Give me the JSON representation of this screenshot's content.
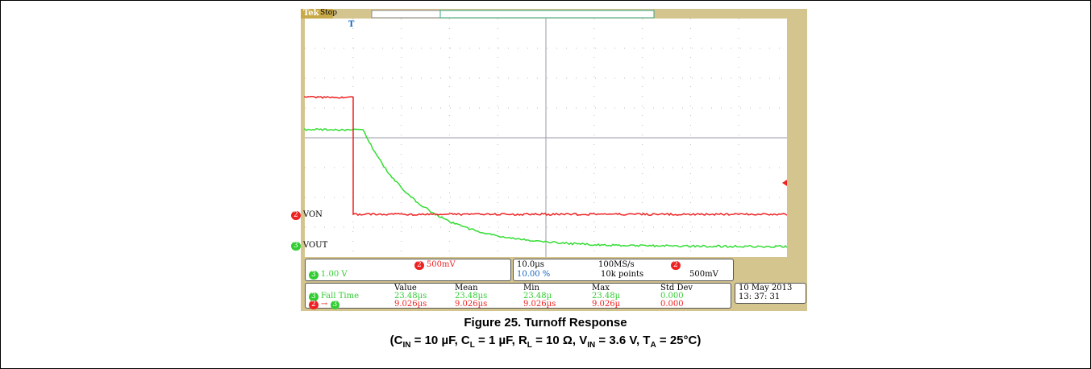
{
  "scope": {
    "brand": "Tek",
    "status": "Stop",
    "trigger": "T",
    "channels": [
      {
        "number": "2",
        "name": "VON"
      },
      {
        "number": "3",
        "name": "VOUT"
      }
    ],
    "ch2_scale": "500mV",
    "ch3_scale": "1.00 V",
    "timebase": "10.0µs",
    "sample_rate": "100MS/s",
    "trigger_pos": "10.00 %",
    "record": "10k points",
    "trigger_level": "500mV",
    "meas_headers": [
      "Value",
      "Mean",
      "Min",
      "Max",
      "Std Dev"
    ],
    "meas_rows": [
      {
        "label": "Fall Time",
        "cells": [
          "23.48µs",
          "23.48µs",
          "23.48µ",
          "23.48µ",
          "0.000"
        ]
      },
      {
        "label": "→",
        "cells": [
          "9.026µs",
          "9.026µs",
          "9.026µs",
          "9.026µ",
          "0.000"
        ]
      }
    ],
    "date": "10 May  2013",
    "time": "13: 37: 31"
  },
  "caption": {
    "line1": "Figure 25. Turnoff Response",
    "line2": [
      "(C",
      "IN",
      " = 10 µF, C",
      "L",
      " = 1 µF, R",
      "L",
      " = 10 Ω, V",
      "IN",
      " = 3.6 V, T",
      "A",
      " = 25°C)"
    ]
  }
}
